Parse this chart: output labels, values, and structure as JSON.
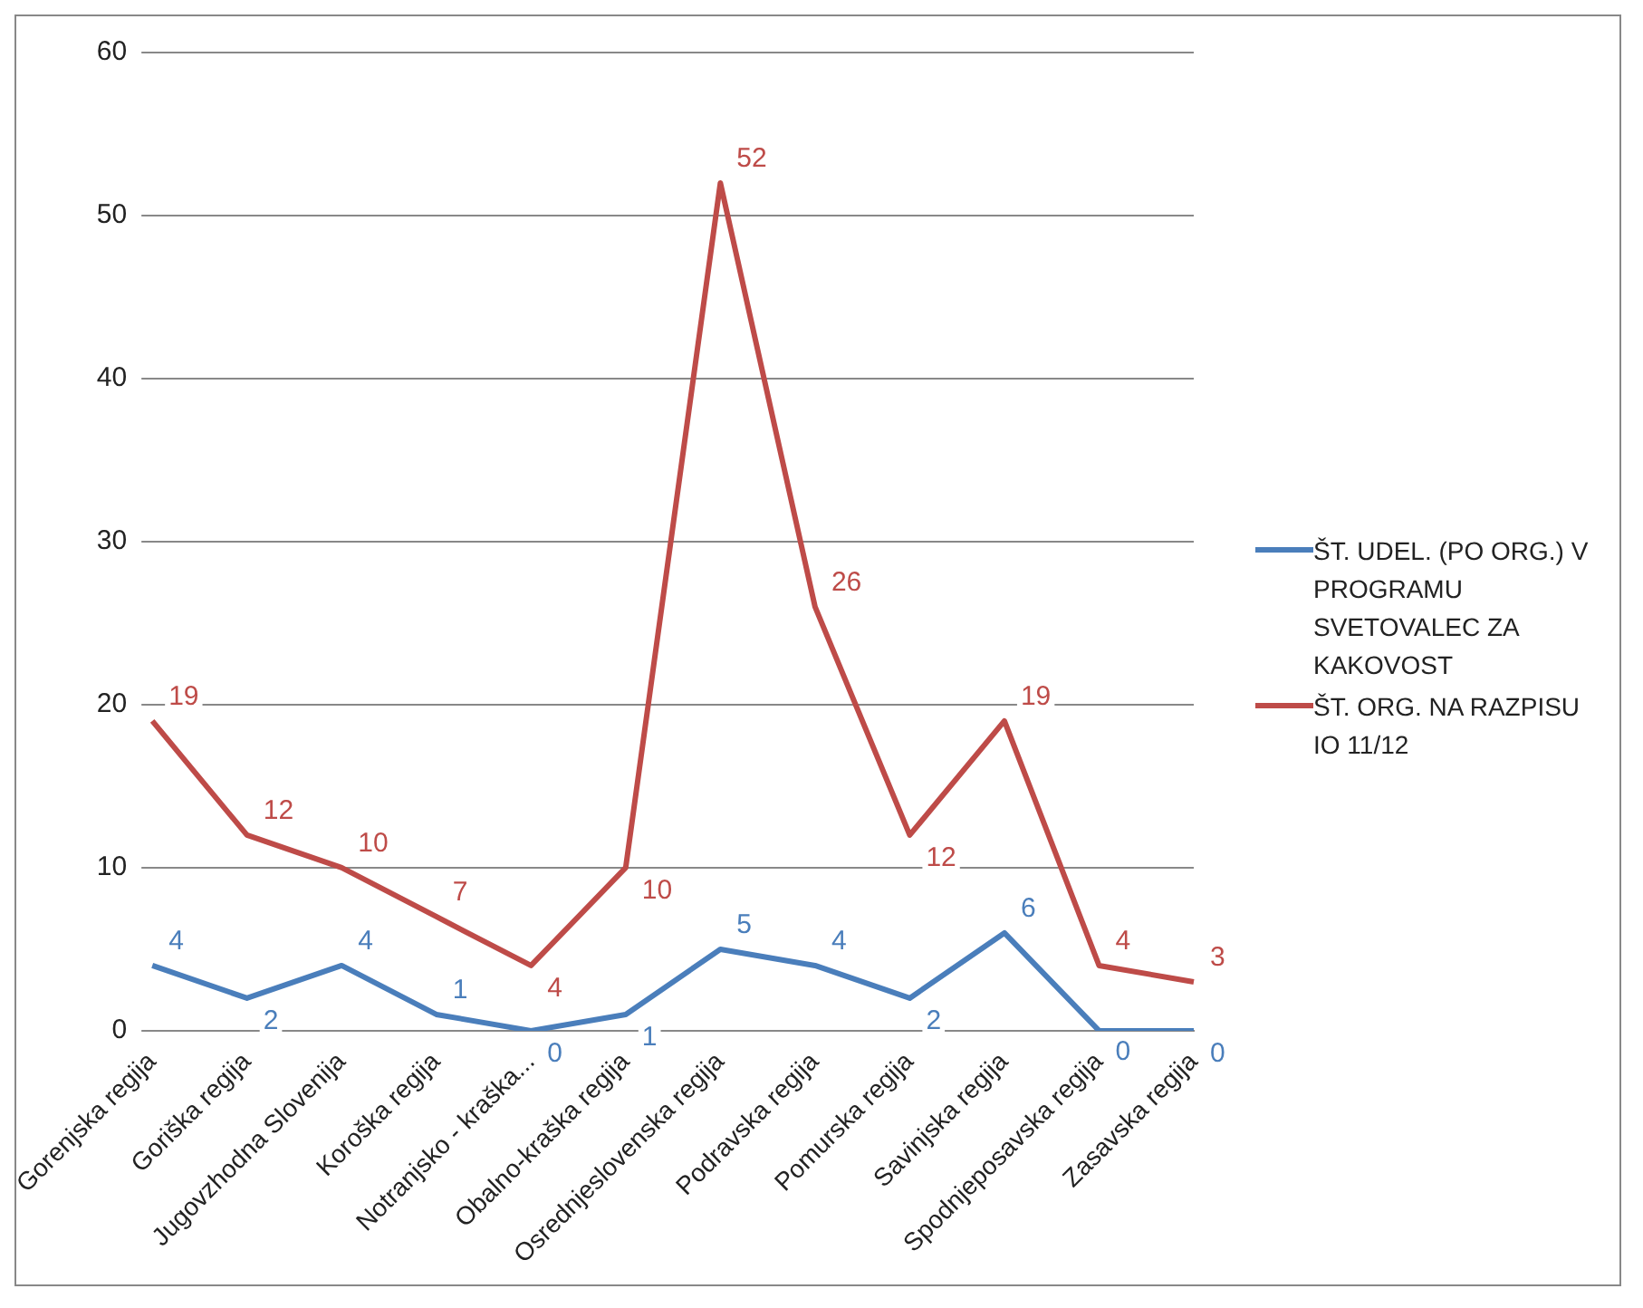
{
  "chart_data": {
    "type": "line",
    "categories": [
      "Gorenjska regija",
      "Goriška regija",
      "Jugovzhodna Slovenija",
      "Koroška regija",
      "Notranjsko - kraška...",
      "Obalno-kraška regija",
      "Osrednjeslovenska regija",
      "Podravska regija",
      "Pomurska regija",
      "Savinjska regija",
      "Spodnjeposavska regija",
      "Zasavska regija"
    ],
    "series": [
      {
        "name": "ŠT. UDEL. (PO ORG.) V PROGRAMU SVETOVALEC ZA KAKOVOST",
        "color": "#4a7ebb",
        "values": [
          4,
          2,
          4,
          1,
          0,
          1,
          5,
          4,
          2,
          6,
          0,
          0
        ]
      },
      {
        "name": "ŠT. ORG. NA RAZPISU IO 11/12",
        "color": "#be4b48",
        "values": [
          19,
          12,
          10,
          7,
          4,
          10,
          52,
          26,
          12,
          19,
          4,
          3
        ]
      }
    ],
    "ylim": [
      0,
      60
    ],
    "yticks": [
      0,
      10,
      20,
      30,
      40,
      50,
      60
    ],
    "grid": "y",
    "legend": "right",
    "data_labels": true,
    "marker": "none",
    "line_style": "solid"
  }
}
